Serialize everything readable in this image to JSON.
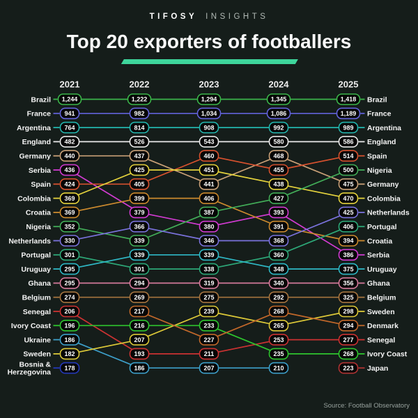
{
  "header": {
    "brand_primary": "TIFOSY",
    "brand_secondary": "INSIGHTS",
    "title": "Top 20 exporters of footballers"
  },
  "footer": {
    "source": "Source: Football Observatory"
  },
  "chart_data": {
    "type": "line",
    "subtype": "bump-chart",
    "title": "Top 20 exporters of footballers",
    "years": [
      "2021",
      "2022",
      "2023",
      "2024",
      "2025"
    ],
    "accent_color": "#3ed59b",
    "background_color": "#151d1a",
    "box_fill": "#060606",
    "text_color": "#ffffff",
    "colors": {
      "Brazil": "#3bb54a",
      "France": "#6262d9",
      "Argentina": "#23b5ad",
      "England": "#e9e9e9",
      "Germany": "#c9a077",
      "Serbia": "#d23bd2",
      "Spain": "#d6512e",
      "Colombia": "#e5d33d",
      "Croatia": "#cc8a2e",
      "Nigeria": "#42ad58",
      "Netherlands": "#7a72dc",
      "Portugal": "#2da878",
      "Uruguay": "#2fb9c6",
      "Ghana": "#d4799a",
      "Belgium": "#a5743f",
      "Senegal": "#cc3232",
      "Ivory Coast": "#2ec52e",
      "Ukraine": "#3d9fc9",
      "Sweden": "#ddc938",
      "Bosnia & Herzegovina": "#2438b8",
      "Denmark": "#c2682a",
      "Japan": "#b03333"
    },
    "rankings": {
      "2021": [
        {
          "c": "Brazil",
          "v": 1244
        },
        {
          "c": "France",
          "v": 941
        },
        {
          "c": "Argentina",
          "v": 764
        },
        {
          "c": "England",
          "v": 482
        },
        {
          "c": "Germany",
          "v": 440
        },
        {
          "c": "Serbia",
          "v": 436
        },
        {
          "c": "Spain",
          "v": 424
        },
        {
          "c": "Colombia",
          "v": 369
        },
        {
          "c": "Croatia",
          "v": 369
        },
        {
          "c": "Nigeria",
          "v": 352
        },
        {
          "c": "Netherlands",
          "v": 330
        },
        {
          "c": "Portugal",
          "v": 301
        },
        {
          "c": "Uruguay",
          "v": 295
        },
        {
          "c": "Ghana",
          "v": 295
        },
        {
          "c": "Belgium",
          "v": 274
        },
        {
          "c": "Senegal",
          "v": 206
        },
        {
          "c": "Ivory Coast",
          "v": 196
        },
        {
          "c": "Ukraine",
          "v": 186
        },
        {
          "c": "Sweden",
          "v": 182
        },
        {
          "c": "Bosnia & Herzegovina",
          "v": 178
        }
      ],
      "2022": [
        {
          "c": "Brazil",
          "v": 1222
        },
        {
          "c": "France",
          "v": 982
        },
        {
          "c": "Argentina",
          "v": 814
        },
        {
          "c": "England",
          "v": 526
        },
        {
          "c": "Germany",
          "v": 437
        },
        {
          "c": "Colombia",
          "v": 425
        },
        {
          "c": "Spain",
          "v": 405
        },
        {
          "c": "Croatia",
          "v": 399
        },
        {
          "c": "Serbia",
          "v": 379
        },
        {
          "c": "Netherlands",
          "v": 366
        },
        {
          "c": "Nigeria",
          "v": 339
        },
        {
          "c": "Uruguay",
          "v": 339
        },
        {
          "c": "Portugal",
          "v": 301
        },
        {
          "c": "Ghana",
          "v": 294
        },
        {
          "c": "Belgium",
          "v": 269
        },
        {
          "c": "Denmark",
          "v": 217
        },
        {
          "c": "Ivory Coast",
          "v": 216
        },
        {
          "c": "Sweden",
          "v": 207
        },
        {
          "c": "Senegal",
          "v": 193
        },
        {
          "c": "Ukraine",
          "v": 186
        }
      ],
      "2023": [
        {
          "c": "Brazil",
          "v": 1294
        },
        {
          "c": "France",
          "v": 1034
        },
        {
          "c": "Argentina",
          "v": 908
        },
        {
          "c": "England",
          "v": 543
        },
        {
          "c": "Spain",
          "v": 460
        },
        {
          "c": "Colombia",
          "v": 451
        },
        {
          "c": "Germany",
          "v": 441
        },
        {
          "c": "Croatia",
          "v": 406
        },
        {
          "c": "Nigeria",
          "v": 387
        },
        {
          "c": "Serbia",
          "v": 380
        },
        {
          "c": "Netherlands",
          "v": 346
        },
        {
          "c": "Uruguay",
          "v": 339
        },
        {
          "c": "Portugal",
          "v": 338
        },
        {
          "c": "Ghana",
          "v": 319
        },
        {
          "c": "Belgium",
          "v": 275
        },
        {
          "c": "Sweden",
          "v": 239
        },
        {
          "c": "Ivory Coast",
          "v": 233
        },
        {
          "c": "Denmark",
          "v": 227
        },
        {
          "c": "Senegal",
          "v": 211
        },
        {
          "c": "Ukraine",
          "v": 207
        }
      ],
      "2024": [
        {
          "c": "Brazil",
          "v": 1345
        },
        {
          "c": "France",
          "v": 1086
        },
        {
          "c": "Argentina",
          "v": 992
        },
        {
          "c": "England",
          "v": 580
        },
        {
          "c": "Germany",
          "v": 468
        },
        {
          "c": "Spain",
          "v": 455
        },
        {
          "c": "Colombia",
          "v": 438
        },
        {
          "c": "Nigeria",
          "v": 427
        },
        {
          "c": "Serbia",
          "v": 393
        },
        {
          "c": "Croatia",
          "v": 391
        },
        {
          "c": "Netherlands",
          "v": 368
        },
        {
          "c": "Portugal",
          "v": 360
        },
        {
          "c": "Uruguay",
          "v": 348
        },
        {
          "c": "Ghana",
          "v": 340
        },
        {
          "c": "Belgium",
          "v": 292
        },
        {
          "c": "Denmark",
          "v": 268
        },
        {
          "c": "Sweden",
          "v": 265
        },
        {
          "c": "Senegal",
          "v": 253
        },
        {
          "c": "Ivory Coast",
          "v": 235
        },
        {
          "c": "Ukraine",
          "v": 210
        }
      ],
      "2025": [
        {
          "c": "Brazil",
          "v": 1418
        },
        {
          "c": "France",
          "v": 1189
        },
        {
          "c": "Argentina",
          "v": 989
        },
        {
          "c": "England",
          "v": 586
        },
        {
          "c": "Spain",
          "v": 514
        },
        {
          "c": "Nigeria",
          "v": 500
        },
        {
          "c": "Germany",
          "v": 475
        },
        {
          "c": "Colombia",
          "v": 470
        },
        {
          "c": "Netherlands",
          "v": 425
        },
        {
          "c": "Portugal",
          "v": 406
        },
        {
          "c": "Croatia",
          "v": 394
        },
        {
          "c": "Serbia",
          "v": 386
        },
        {
          "c": "Uruguay",
          "v": 375
        },
        {
          "c": "Ghana",
          "v": 356
        },
        {
          "c": "Belgium",
          "v": 325
        },
        {
          "c": "Sweden",
          "v": 298
        },
        {
          "c": "Denmark",
          "v": 294
        },
        {
          "c": "Senegal",
          "v": 277
        },
        {
          "c": "Ivory Coast",
          "v": 268
        },
        {
          "c": "Japan",
          "v": 223
        }
      ]
    },
    "left_label_year": "2021",
    "right_label_year": "2025",
    "grid": false,
    "legend": "none"
  }
}
